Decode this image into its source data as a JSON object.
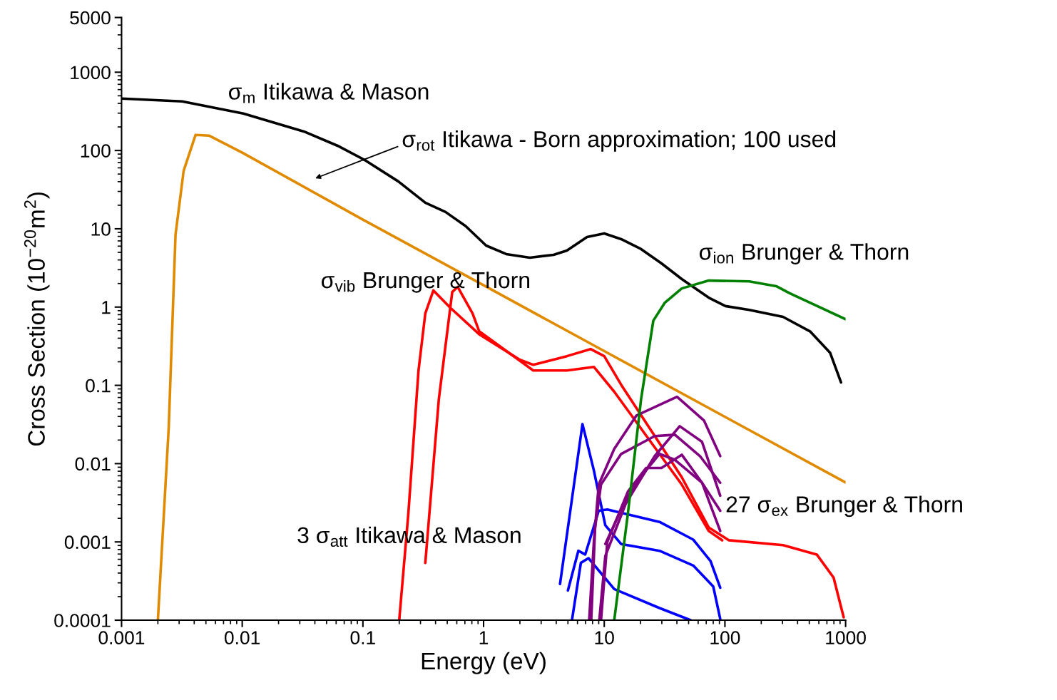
{
  "chart_data": {
    "type": "line",
    "xlabel": "Energy (eV)",
    "ylabel": "Cross Section (10$^{−20}$m$^{2}$)",
    "log": "xy",
    "xlim": [
      0.001,
      1000
    ],
    "ylim": [
      0.0001,
      5000
    ],
    "xticks": [
      0.001,
      0.01,
      0.1,
      1,
      10,
      100,
      1000
    ],
    "yticks": [
      0.0001,
      0.001,
      0.01,
      0.1,
      1,
      10,
      100,
      1000,
      5000
    ],
    "grid": false,
    "annotations": [
      "σ$_{m}$ Itikawa & Mason",
      "σ$_{rot}$ Itikawa - Born approximation; 100 used",
      "σ$_{vib}$ Brunger & Thorn",
      "σ$_{ion}$ Brunger & Thorn",
      "27 σ$_{ex}$ Brunger & Thorn",
      "3 σ$_{att}$ Itikawa & Mason"
    ],
    "series": [
      {
        "color": "#000000",
        "x": [
          0.001,
          0.00318,
          0.0102,
          0.0324,
          0.0617,
          0.103,
          0.196,
          0.329,
          0.484,
          0.711,
          1.05,
          1.54,
          2.42,
          3.8,
          4.9,
          7.2,
          10,
          13.8,
          20.2,
          29.8,
          43.9,
          73.4,
          101,
          159,
          303,
          507,
          745,
          916
        ],
        "values": [
          461,
          424,
          297,
          175,
          115,
          75.8,
          40.4,
          21.5,
          16.4,
          10.8,
          6.1,
          4.75,
          4.28,
          4.65,
          5.27,
          7.85,
          8.73,
          7.38,
          5.5,
          3.61,
          2.28,
          1.32,
          1.03,
          0.92,
          0.75,
          0.49,
          0.26,
          0.109
        ]
      },
      {
        "color": "#e08a00",
        "x": [
          0.002,
          0.00246,
          0.0028,
          0.00327,
          0.0041,
          0.0053,
          0.01,
          0.1,
          1,
          10,
          100,
          1000
        ],
        "values": [
          0.0001,
          0.029,
          8.4,
          55,
          158,
          155,
          94,
          13.1,
          1.9,
          0.274,
          0.0396,
          0.00574
        ]
      },
      {
        "color": "#ff0000",
        "x": [
          0.2,
          0.238,
          0.289,
          0.329,
          0.384,
          0.53,
          0.92,
          2.0,
          2.58,
          4.9,
          7.7,
          10,
          13.8,
          43.9,
          73.4,
          108,
          303,
          577,
          795,
          964
        ],
        "values": [
          0.0001,
          0.0023,
          0.155,
          0.83,
          1.63,
          0.98,
          0.45,
          0.212,
          0.183,
          0.236,
          0.291,
          0.236,
          0.102,
          0.0067,
          0.00153,
          0.00105,
          0.00091,
          0.00069,
          0.00035,
          0.000109
        ]
      },
      {
        "color": "#ff0000",
        "x": [
          0.329,
          0.426,
          0.55,
          0.61,
          0.81,
          0.92,
          2.58,
          4.9,
          8.2,
          12.1,
          43.9,
          73.4,
          95
        ],
        "values": [
          0.00054,
          0.067,
          1.56,
          1.81,
          0.83,
          0.49,
          0.155,
          0.155,
          0.172,
          0.083,
          0.0054,
          0.00138,
          0.00105
        ]
      },
      {
        "color": "#0000ff",
        "x": [
          4.3,
          6.6,
          8.2,
          10.2,
          13.8,
          28.7,
          54.6,
          80,
          91.4
        ],
        "values": [
          0.00029,
          0.032,
          0.0082,
          0.00163,
          0.00094,
          0.00077,
          0.0005,
          0.00027,
          0.000104
        ]
      },
      {
        "color": "#0000ff",
        "x": [
          5.0,
          6.1,
          6.95,
          9.0,
          10.6,
          28.7,
          54.6,
          76,
          91.4
        ],
        "values": [
          0.00024,
          0.00077,
          0.00069,
          0.0025,
          0.0026,
          0.0018,
          0.00107,
          0.00057,
          0.00026
        ]
      },
      {
        "color": "#0000ff",
        "x": [
          5.4,
          6.4,
          7.4,
          12.1,
          28.7,
          51.9
        ],
        "values": [
          0.0001,
          0.00054,
          0.00062,
          0.00025,
          0.000143,
          0.0001
        ]
      },
      {
        "color": "#800080",
        "x": [
          7.5,
          8.2,
          9.0,
          12.1,
          18.5,
          40.1,
          67,
          91.4
        ],
        "values": [
          0.0001,
          0.001,
          0.0054,
          0.0154,
          0.0413,
          0.0713,
          0.0356,
          0.0125
        ]
      },
      {
        "color": "#800080",
        "x": [
          7.8,
          8.4,
          9.4,
          13.8,
          26.2,
          38.5,
          62.1,
          91.4
        ],
        "values": [
          0.0001,
          0.00153,
          0.0054,
          0.0133,
          0.0225,
          0.0234,
          0.0125,
          0.0057
        ]
      },
      {
        "color": "#800080",
        "x": [
          9.1,
          10.2,
          15.1,
          26.2,
          42.2,
          64.6,
          91.4
        ],
        "values": [
          0.0001,
          0.00066,
          0.0031,
          0.0125,
          0.0301,
          0.019,
          0.0039
        ]
      },
      {
        "color": "#800080",
        "x": [
          10.2,
          15.1,
          22.2,
          28.7,
          38.5,
          64.6,
          91.4
        ],
        "values": [
          0.00094,
          0.0035,
          0.0082,
          0.0133,
          0.0112,
          0.0057,
          0.0025
        ]
      },
      {
        "color": "#800080",
        "x": [
          9.4,
          10.6,
          15.7,
          22.2,
          29.8,
          43.9,
          64.6,
          91.4
        ],
        "values": [
          0.0001,
          0.001,
          0.0044,
          0.0088,
          0.0088,
          0.013,
          0.0057,
          0.00138
        ]
      },
      {
        "color": "#008000",
        "x": [
          12.1,
          15.7,
          20.2,
          25.5,
          31.8,
          43.9,
          73.4,
          159,
          266,
          344,
          1000
        ],
        "values": [
          0.0001,
          0.0023,
          0.067,
          0.67,
          1.14,
          1.73,
          2.18,
          2.13,
          1.85,
          1.5,
          0.7
        ]
      }
    ]
  }
}
